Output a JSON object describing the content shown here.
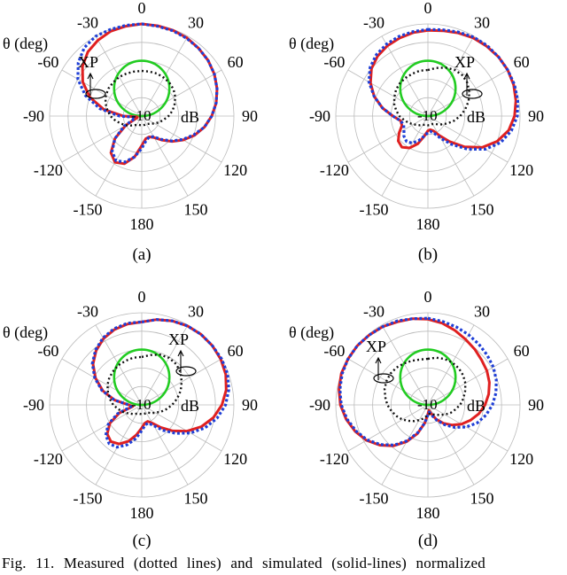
{
  "caption": "Fig. 11.   Measured (dotted lines) and simulated (solid-lines) normalized",
  "colors": {
    "simulated": "#e02020",
    "measured": "#1f3fd6",
    "xp_dotted": "#111111",
    "inner_circle": "#22cc22",
    "grid": "#bbbbbb"
  },
  "chart_data": [
    {
      "type": "polar",
      "panel_label": "(a)",
      "unit_label": "dB",
      "theta_label": "θ (deg)",
      "ring_center_label": "-10",
      "angle_labels": [
        "0",
        "30",
        "60",
        "90",
        "120",
        "150",
        "180",
        "-150",
        "-120",
        "-90",
        "-60",
        "-30"
      ],
      "grid": true,
      "xp_label": "XP",
      "series": [
        {
          "style": "solid",
          "color": "#e02020",
          "r": [
            1.0,
            0.995,
            0.99,
            0.98,
            0.96,
            0.94,
            0.91,
            0.87,
            0.82,
            0.76,
            0.69,
            0.61,
            0.52,
            0.43,
            0.34,
            0.27,
            0.24,
            0.25,
            0.32,
            0.45,
            0.55,
            0.58,
            0.52,
            0.38,
            0.2,
            0.05,
            0.05,
            0.2,
            0.42,
            0.6,
            0.74,
            0.84,
            0.91,
            0.95,
            0.98,
            0.99
          ]
        },
        {
          "style": "dotted",
          "color": "#1f3fd6",
          "r": [
            1.0,
            0.99,
            0.985,
            0.975,
            0.96,
            0.94,
            0.91,
            0.87,
            0.82,
            0.76,
            0.69,
            0.6,
            0.51,
            0.42,
            0.33,
            0.26,
            0.24,
            0.27,
            0.35,
            0.45,
            0.53,
            0.56,
            0.5,
            0.38,
            0.22,
            0.08,
            0.08,
            0.24,
            0.46,
            0.65,
            0.8,
            0.9,
            0.97,
            1.0,
            1.0,
            1.0
          ]
        },
        {
          "style": "xp_dotted",
          "color": "#111111",
          "r": [
            0.49,
            0.49,
            0.49,
            0.48,
            0.47,
            0.45,
            0.42,
            0.38,
            0.34,
            0.29,
            0.24,
            0.2,
            0.16,
            0.13,
            0.11,
            0.1,
            0.1,
            0.1,
            0.1,
            0.1,
            0.1,
            0.11,
            0.13,
            0.16,
            0.2,
            0.24,
            0.29,
            0.34,
            0.38,
            0.42,
            0.45,
            0.47,
            0.48,
            0.49,
            0.49,
            0.49
          ]
        }
      ],
      "inner_circle_r": 0.3
    },
    {
      "type": "polar",
      "panel_label": "(b)",
      "unit_label": "dB",
      "theta_label": "θ (deg)",
      "ring_center_label": "-10",
      "angle_labels": [
        "0",
        "30",
        "60",
        "90",
        "120",
        "150",
        "180",
        "-150",
        "-120",
        "-90",
        "-60",
        "-30"
      ],
      "grid": true,
      "xp_label": "XP",
      "series": [
        {
          "style": "solid",
          "color": "#e02020",
          "r": [
            0.93,
            0.94,
            0.96,
            0.98,
            0.99,
            1.0,
            1.0,
            0.99,
            0.97,
            0.94,
            0.89,
            0.8,
            0.68,
            0.52,
            0.36,
            0.24,
            0.17,
            0.15,
            0.16,
            0.22,
            0.32,
            0.4,
            0.44,
            0.42,
            0.36,
            0.3,
            0.3,
            0.38,
            0.5,
            0.62,
            0.72,
            0.8,
            0.85,
            0.88,
            0.9,
            0.92
          ]
        },
        {
          "style": "dotted",
          "color": "#1f3fd6",
          "r": [
            0.94,
            0.95,
            0.97,
            0.99,
            1.0,
            1.0,
            1.0,
            1.0,
            0.99,
            0.97,
            0.92,
            0.84,
            0.72,
            0.56,
            0.4,
            0.28,
            0.2,
            0.17,
            0.18,
            0.22,
            0.28,
            0.34,
            0.36,
            0.34,
            0.3,
            0.28,
            0.3,
            0.38,
            0.5,
            0.62,
            0.74,
            0.82,
            0.87,
            0.9,
            0.92,
            0.93
          ]
        },
        {
          "style": "xp_dotted",
          "color": "#111111",
          "r": [
            0.5,
            0.53,
            0.56,
            0.58,
            0.58,
            0.56,
            0.52,
            0.47,
            0.41,
            0.35,
            0.29,
            0.23,
            0.18,
            0.14,
            0.11,
            0.1,
            0.1,
            0.1,
            0.1,
            0.1,
            0.1,
            0.11,
            0.13,
            0.15,
            0.18,
            0.22,
            0.26,
            0.31,
            0.35,
            0.39,
            0.42,
            0.45,
            0.47,
            0.48,
            0.49,
            0.5
          ]
        }
      ],
      "inner_circle_r": 0.3
    },
    {
      "type": "polar",
      "panel_label": "(c)",
      "unit_label": "dB",
      "theta_label": "θ (deg)",
      "ring_center_label": "-10",
      "angle_labels": [
        "0",
        "30",
        "60",
        "90",
        "120",
        "150",
        "180",
        "-150",
        "-120",
        "-90",
        "-60",
        "-30"
      ],
      "grid": true,
      "xp_label": "XP",
      "series": [
        {
          "style": "solid",
          "color": "#e02020",
          "r": [
            0.9,
            0.94,
            0.97,
            0.99,
            1.0,
            1.0,
            0.99,
            0.97,
            0.93,
            0.87,
            0.79,
            0.69,
            0.57,
            0.44,
            0.32,
            0.23,
            0.19,
            0.2,
            0.25,
            0.33,
            0.42,
            0.49,
            0.52,
            0.49,
            0.4,
            0.26,
            0.1,
            0.14,
            0.3,
            0.45,
            0.58,
            0.69,
            0.77,
            0.83,
            0.87,
            0.89
          ]
        },
        {
          "style": "dotted",
          "color": "#1f3fd6",
          "r": [
            0.9,
            0.94,
            0.97,
            0.99,
            1.0,
            1.0,
            1.0,
            0.99,
            0.96,
            0.91,
            0.83,
            0.73,
            0.61,
            0.48,
            0.36,
            0.26,
            0.21,
            0.22,
            0.28,
            0.37,
            0.46,
            0.53,
            0.55,
            0.51,
            0.42,
            0.28,
            0.12,
            0.14,
            0.3,
            0.46,
            0.59,
            0.7,
            0.78,
            0.84,
            0.88,
            0.9
          ]
        },
        {
          "style": "xp_dotted",
          "color": "#111111",
          "r": [
            0.52,
            0.55,
            0.58,
            0.59,
            0.58,
            0.55,
            0.5,
            0.45,
            0.39,
            0.33,
            0.27,
            0.22,
            0.17,
            0.14,
            0.11,
            0.1,
            0.1,
            0.1,
            0.1,
            0.1,
            0.1,
            0.11,
            0.13,
            0.15,
            0.18,
            0.22,
            0.26,
            0.31,
            0.35,
            0.39,
            0.43,
            0.46,
            0.48,
            0.5,
            0.51,
            0.52
          ]
        }
      ],
      "inner_circle_r": 0.3
    },
    {
      "type": "polar",
      "panel_label": "(d)",
      "unit_label": "dB",
      "theta_label": "θ (deg)",
      "ring_center_label": "-10",
      "angle_labels": [
        "0",
        "30",
        "60",
        "90",
        "120",
        "150",
        "180",
        "-150",
        "-120",
        "-90",
        "-60",
        "-30"
      ],
      "grid": true,
      "xp_label": "XP",
      "series": [
        {
          "style": "solid",
          "color": "#e02020",
          "r": [
            0.93,
            0.9,
            0.86,
            0.82,
            0.79,
            0.76,
            0.74,
            0.71,
            0.67,
            0.62,
            0.56,
            0.49,
            0.42,
            0.34,
            0.26,
            0.18,
            0.1,
            0.06,
            0.1,
            0.2,
            0.33,
            0.46,
            0.58,
            0.68,
            0.77,
            0.84,
            0.9,
            0.95,
            0.98,
            1.0,
            1.0,
            1.0,
            0.99,
            0.98,
            0.96,
            0.95
          ]
        },
        {
          "style": "dotted",
          "color": "#1f3fd6",
          "r": [
            0.94,
            0.92,
            0.9,
            0.88,
            0.86,
            0.84,
            0.82,
            0.79,
            0.75,
            0.7,
            0.64,
            0.57,
            0.48,
            0.38,
            0.28,
            0.19,
            0.12,
            0.08,
            0.11,
            0.2,
            0.32,
            0.45,
            0.57,
            0.67,
            0.76,
            0.83,
            0.89,
            0.94,
            0.97,
            0.99,
            1.0,
            1.0,
            0.99,
            0.98,
            0.97,
            0.95
          ]
        },
        {
          "style": "xp_dotted",
          "color": "#111111",
          "r": [
            0.5,
            0.52,
            0.53,
            0.53,
            0.52,
            0.5,
            0.47,
            0.43,
            0.39,
            0.35,
            0.3,
            0.26,
            0.21,
            0.17,
            0.14,
            0.12,
            0.1,
            0.1,
            0.11,
            0.13,
            0.16,
            0.19,
            0.23,
            0.27,
            0.32,
            0.36,
            0.4,
            0.44,
            0.47,
            0.5,
            0.52,
            0.53,
            0.53,
            0.52,
            0.51,
            0.5
          ]
        }
      ],
      "inner_circle_r": 0.3
    }
  ]
}
